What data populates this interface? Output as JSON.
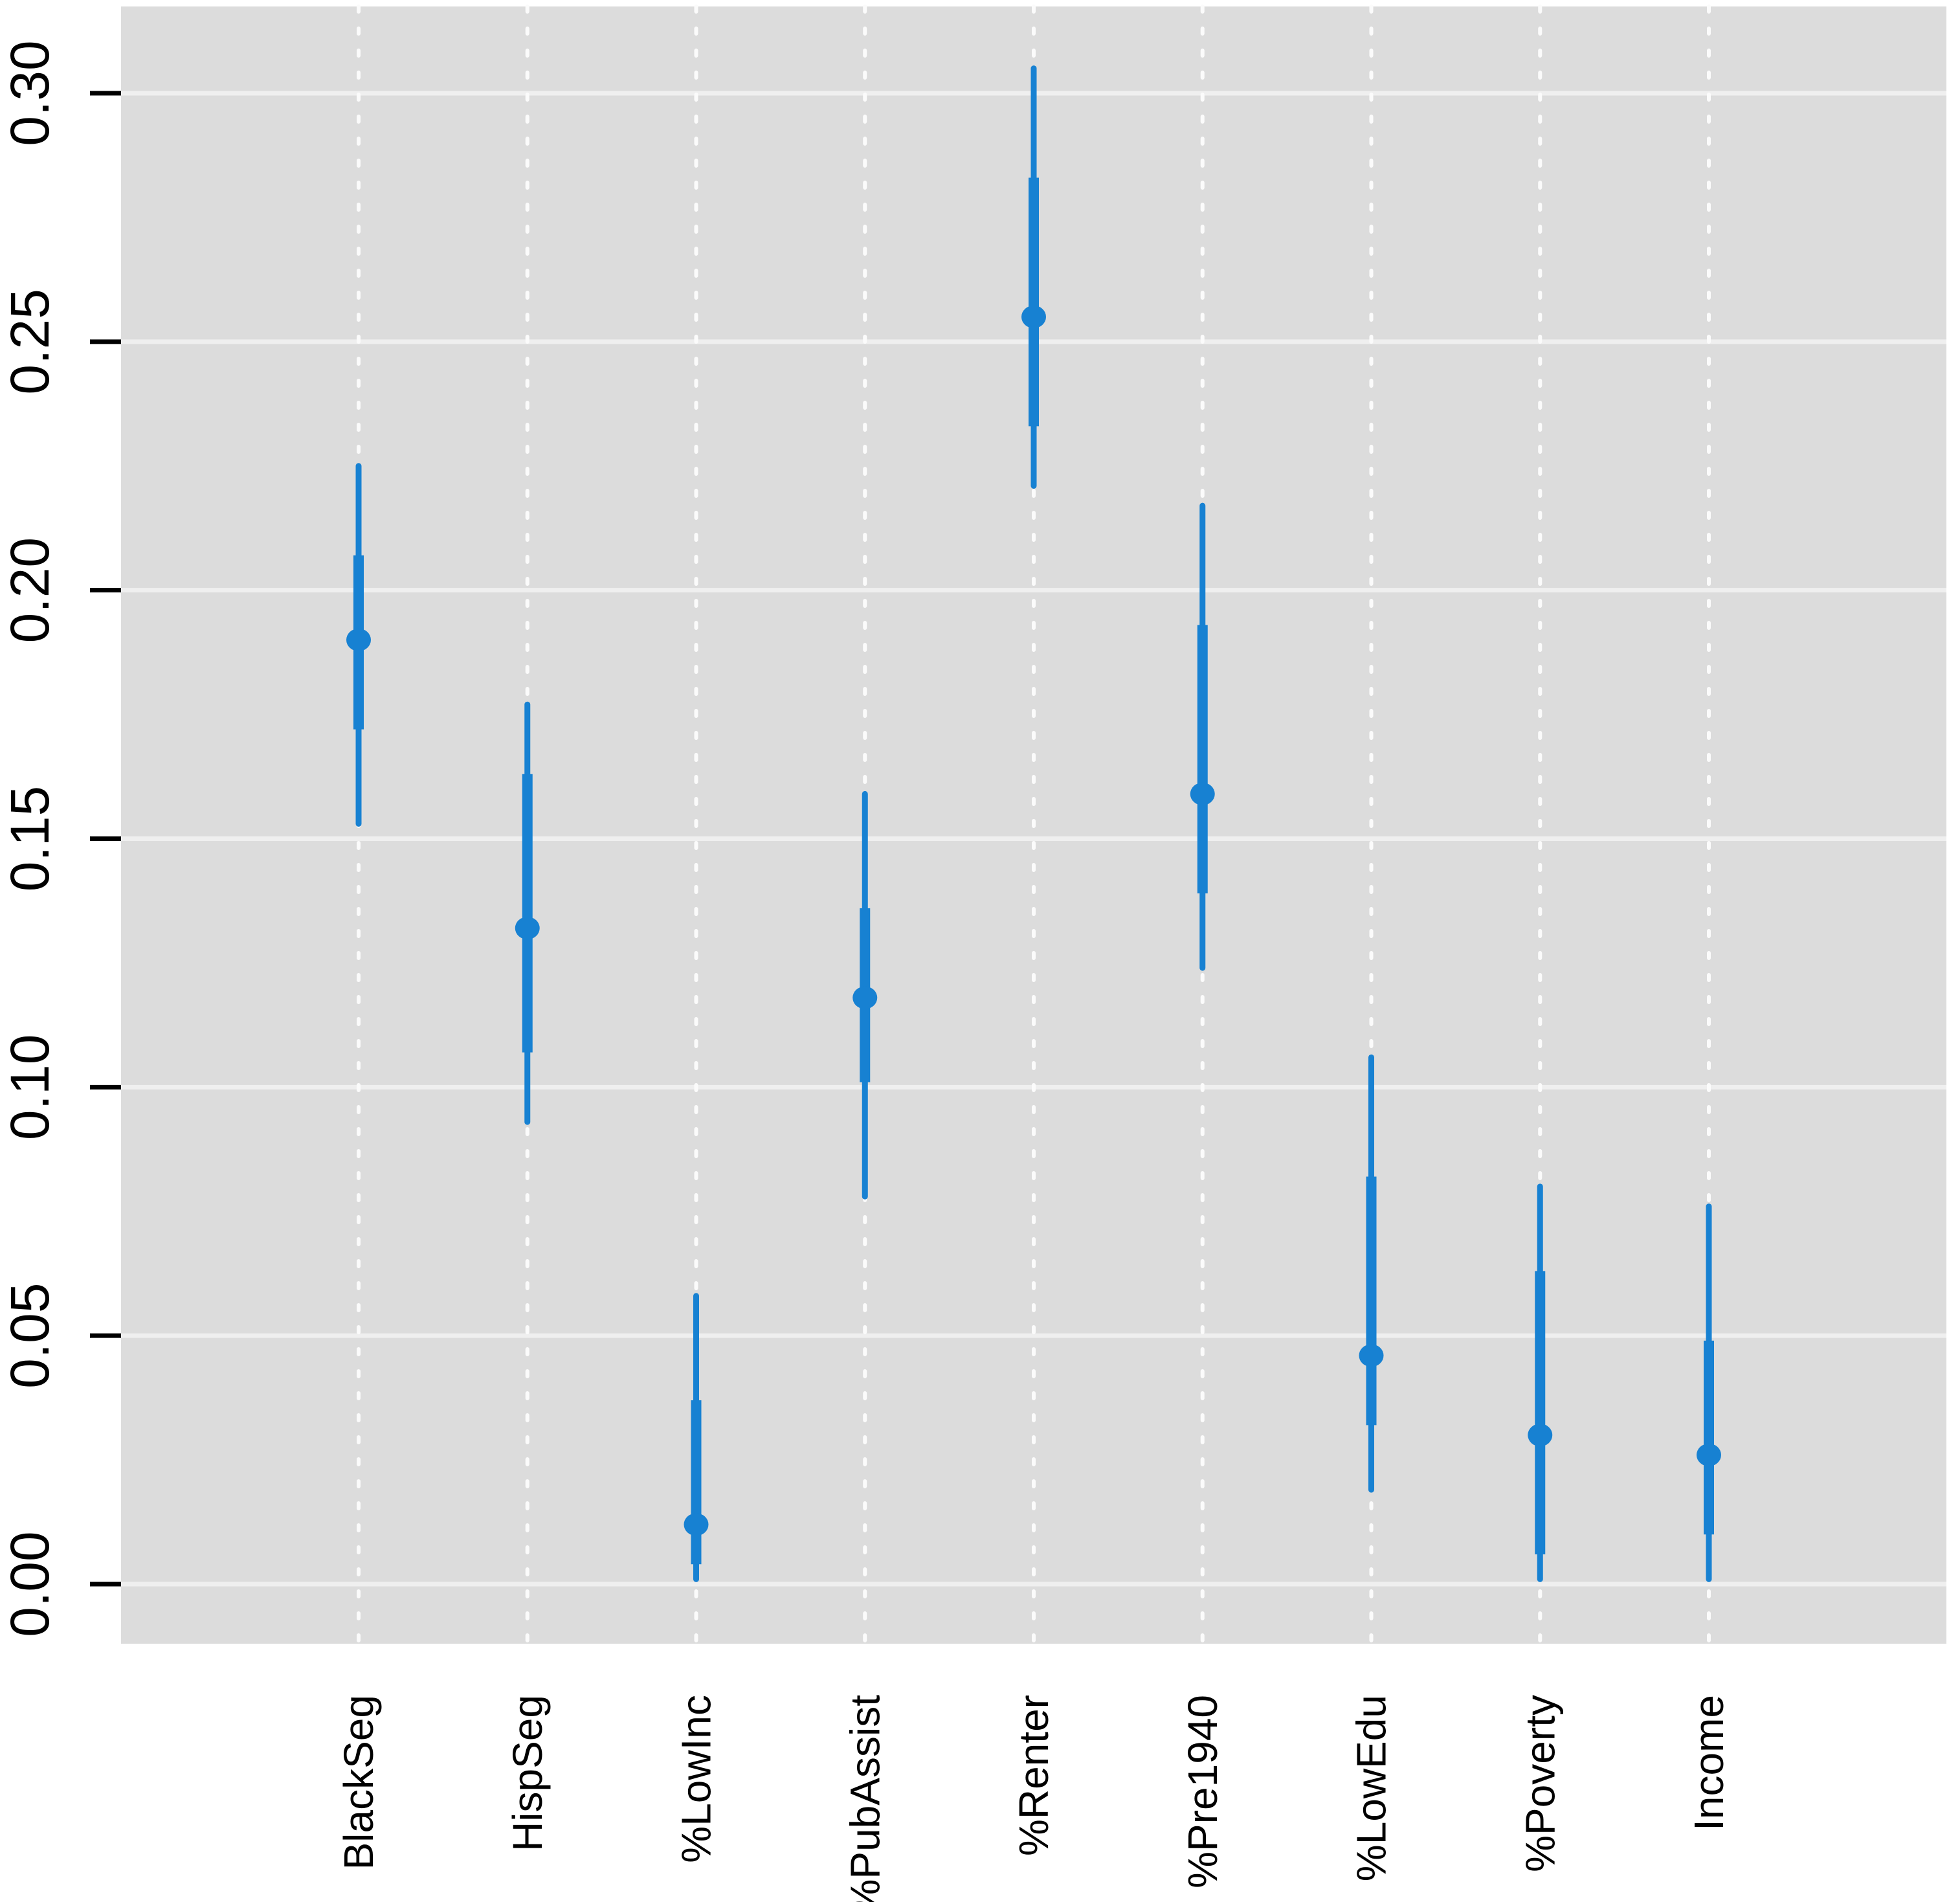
{
  "chart_data": {
    "type": "scatter",
    "subtype": "coefficient-dot-plot-with-intervals",
    "title": "",
    "xlabel": "",
    "ylabel": "",
    "categories": [
      "BlackSeg",
      "HispSeg",
      "%LowInc",
      "%PubAssist",
      "%Renter",
      "%Pre1940",
      "%LowEdu",
      "%Poverty",
      "Income"
    ],
    "series": [
      {
        "name": "point-estimate",
        "values": [
          0.19,
          0.132,
          0.012,
          0.118,
          0.255,
          0.159,
          0.046,
          0.03,
          0.026
        ]
      },
      {
        "name": "inner-interval-50pct",
        "ranges": [
          [
            0.172,
            0.207
          ],
          [
            0.107,
            0.163
          ],
          [
            0.004,
            0.037
          ],
          [
            0.101,
            0.136
          ],
          [
            0.233,
            0.283
          ],
          [
            0.139,
            0.193
          ],
          [
            0.032,
            0.082
          ],
          [
            0.006,
            0.063
          ],
          [
            0.01,
            0.049
          ]
        ]
      },
      {
        "name": "outer-interval-95pct",
        "ranges": [
          [
            0.153,
            0.225
          ],
          [
            0.093,
            0.177
          ],
          [
            0.001,
            0.058
          ],
          [
            0.078,
            0.159
          ],
          [
            0.221,
            0.305
          ],
          [
            0.124,
            0.217
          ],
          [
            0.019,
            0.106
          ],
          [
            0.001,
            0.08
          ],
          [
            0.001,
            0.076
          ]
        ]
      }
    ],
    "ylim": [
      0.0,
      0.3
    ],
    "yticks": [
      0.0,
      0.05,
      0.1,
      0.15,
      0.2,
      0.25,
      0.3
    ],
    "y_tick_labels": [
      "0.00",
      "0.05",
      "0.10",
      "0.15",
      "0.20",
      "0.25",
      "0.30"
    ],
    "x_tick_labels": [
      "BlackSeg",
      "HispSeg",
      "%LowInc",
      "%PubAssist",
      "%Renter",
      "%Pre1940",
      "%LowEdu",
      "%Poverty",
      "Income"
    ],
    "legend": "none",
    "grid": {
      "horizontal_major": true,
      "vertical_category_lines": "dotted"
    },
    "label_orientation": "both axis tick labels rotated 90 degrees (reading bottom to top)",
    "colors": {
      "point_and_interval": "#1781d2",
      "panel_background": "#dcdcdc",
      "horizontal_gridline": "#efefef",
      "vertical_dotted_line": "#fbfbfb",
      "tick_and_text": "#000000",
      "page_background": "#ffffff"
    }
  }
}
